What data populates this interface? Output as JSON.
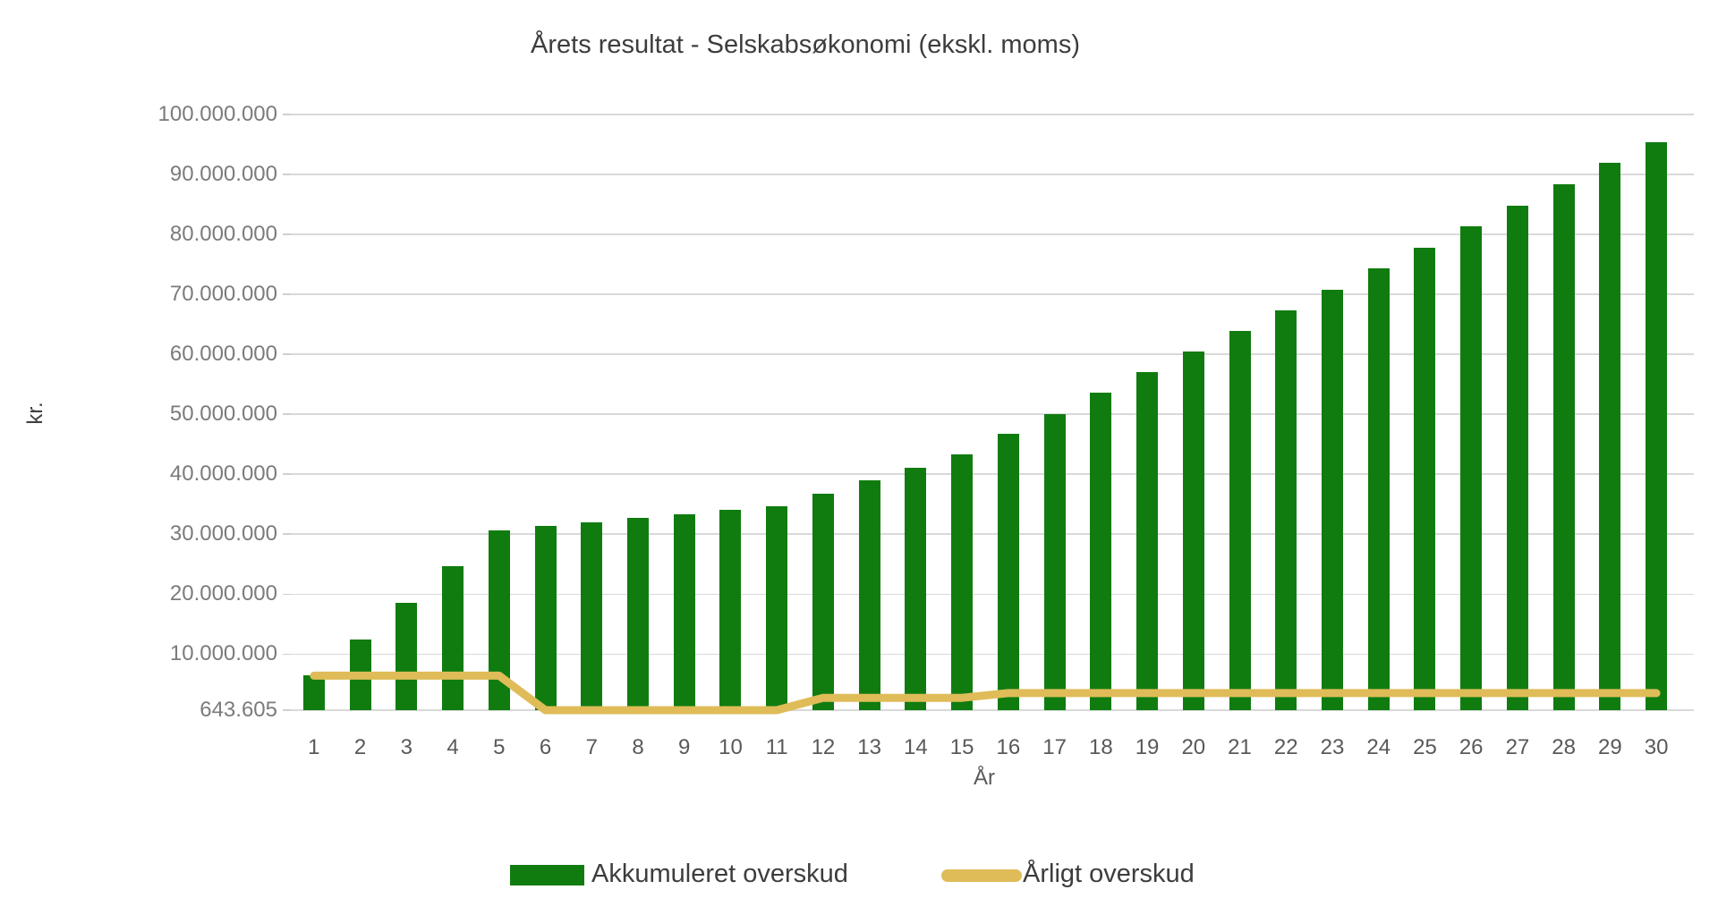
{
  "chart_data": {
    "type": "bar",
    "title": "Årets resultat - Selskabsøkonomi (ekskl. moms)",
    "xlabel": "År",
    "ylabel": "kr.",
    "categories": [
      "1",
      "2",
      "3",
      "4",
      "5",
      "6",
      "7",
      "8",
      "9",
      "10",
      "11",
      "12",
      "13",
      "14",
      "15",
      "16",
      "17",
      "18",
      "19",
      "20",
      "21",
      "22",
      "23",
      "24",
      "25",
      "26",
      "27",
      "28",
      "29",
      "30"
    ],
    "series": [
      {
        "name": "Akkumuleret overskud",
        "type": "bar",
        "color": "#107C10",
        "values": [
          6400000,
          12400000,
          18600000,
          24600000,
          30700000,
          31400000,
          32000000,
          32700000,
          33300000,
          34000000,
          34600000,
          36800000,
          39000000,
          41100000,
          43300000,
          46800000,
          50000000,
          53600000,
          57100000,
          60400000,
          63900000,
          67300000,
          70800000,
          74300000,
          77800000,
          81300000,
          84800000,
          88300000,
          91900000,
          95400000
        ]
      },
      {
        "name": "Årligt overskud",
        "type": "line",
        "color": "#DFBC58",
        "values": [
          6400000,
          6400000,
          6400000,
          6400000,
          6400000,
          643605,
          643605,
          643605,
          643605,
          643605,
          643605,
          2700000,
          2700000,
          2700000,
          2700000,
          3500000,
          3500000,
          3500000,
          3500000,
          3500000,
          3500000,
          3500000,
          3500000,
          3500000,
          3500000,
          3500000,
          3500000,
          3500000,
          3500000,
          3500000
        ]
      }
    ],
    "ylim": [
      643605,
      100000000
    ],
    "ytick_values": [
      643605,
      10000000,
      20000000,
      30000000,
      40000000,
      50000000,
      60000000,
      70000000,
      80000000,
      90000000,
      100000000
    ],
    "ytick_labels": [
      "643.605",
      "10.000.000",
      "20.000.000",
      "30.000.000",
      "40.000.000",
      "50.000.000",
      "60.000.000",
      "70.000.000",
      "80.000.000",
      "90.000.000",
      "100.000.000"
    ],
    "grid": true,
    "grid_color": "#d9d9d9",
    "legend_position": "bottom"
  }
}
